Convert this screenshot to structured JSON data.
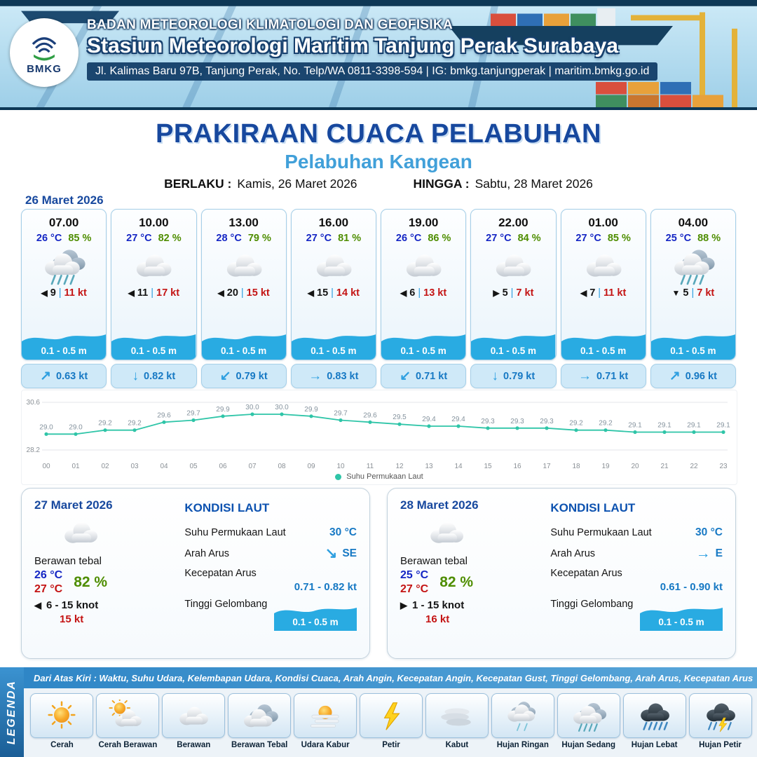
{
  "header": {
    "line1": "BADAN METEOROLOGI KLIMATOLOGI DAN GEOFISIKA",
    "line2": "Stasiun Meteorologi Maritim Tanjung Perak Surabaya",
    "line3": "Jl. Kalimas Baru 97B, Tanjung Perak, No. Telp/WA 0811-3398-594 | IG: bmkg.tanjungperak | maritim.bmkg.go.id",
    "logo_label": "BMKG"
  },
  "title": {
    "main": "PRAKIRAAN CUACA PELABUHAN",
    "port": "Pelabuhan Kangean",
    "berlaku_label": "BERLAKU :",
    "berlaku_value": "Kamis, 26 Maret 2026",
    "hingga_label": "HINGGA :",
    "hingga_value": "Sabtu, 28 Maret 2026"
  },
  "forecast": {
    "date": "26 Maret 2026",
    "cards": [
      {
        "time": "07.00",
        "temp": "26 °C",
        "humidity": "85 %",
        "icon": "rain-medium",
        "wind_dir": "w",
        "wind_speed": "9",
        "gust": "11 kt",
        "wave": "0.1 - 0.5 m",
        "current_dir": "ne",
        "current_speed": "0.63 kt"
      },
      {
        "time": "10.00",
        "temp": "27 °C",
        "humidity": "82 %",
        "icon": "cloud",
        "wind_dir": "w",
        "wind_speed": "11",
        "gust": "17 kt",
        "wave": "0.1 - 0.5 m",
        "current_dir": "s",
        "current_speed": "0.82 kt"
      },
      {
        "time": "13.00",
        "temp": "28 °C",
        "humidity": "79 %",
        "icon": "cloud",
        "wind_dir": "w",
        "wind_speed": "20",
        "gust": "15 kt",
        "wave": "0.1 - 0.5 m",
        "current_dir": "sw",
        "current_speed": "0.79 kt"
      },
      {
        "time": "16.00",
        "temp": "27 °C",
        "humidity": "81 %",
        "icon": "cloud",
        "wind_dir": "w",
        "wind_speed": "15",
        "gust": "14 kt",
        "wave": "0.1 - 0.5 m",
        "current_dir": "e",
        "current_speed": "0.83 kt"
      },
      {
        "time": "19.00",
        "temp": "26 °C",
        "humidity": "86 %",
        "icon": "cloud",
        "wind_dir": "w",
        "wind_speed": "6",
        "gust": "13 kt",
        "wave": "0.1 - 0.5 m",
        "current_dir": "sw",
        "current_speed": "0.71 kt"
      },
      {
        "time": "22.00",
        "temp": "27 °C",
        "humidity": "84 %",
        "icon": "cloud",
        "wind_dir": "e",
        "wind_speed": "5",
        "gust": "7 kt",
        "wave": "0.1 - 0.5 m",
        "current_dir": "s",
        "current_speed": "0.79 kt"
      },
      {
        "time": "01.00",
        "temp": "27 °C",
        "humidity": "85 %",
        "icon": "cloud",
        "wind_dir": "w",
        "wind_speed": "7",
        "gust": "11 kt",
        "wave": "0.1 - 0.5 m",
        "current_dir": "e",
        "current_speed": "0.71 kt"
      },
      {
        "time": "04.00",
        "temp": "25 °C",
        "humidity": "88 %",
        "icon": "rain-medium",
        "wind_dir": "s",
        "wind_speed": "5",
        "gust": "7 kt",
        "wave": "0.1 - 0.5 m",
        "current_dir": "ne",
        "current_speed": "0.96 kt"
      }
    ]
  },
  "chart_data": {
    "type": "line",
    "title": "Suhu Permukaan Laut",
    "series": [
      {
        "name": "Suhu Permukaan Laut",
        "values": [
          29.0,
          29.0,
          29.2,
          29.2,
          29.6,
          29.7,
          29.9,
          30.0,
          30.0,
          29.9,
          29.7,
          29.6,
          29.5,
          29.4,
          29.4,
          29.3,
          29.3,
          29.3,
          29.2,
          29.2,
          29.1,
          29.1,
          29.1,
          29.1
        ]
      }
    ],
    "x": [
      "00",
      "01",
      "02",
      "03",
      "04",
      "05",
      "06",
      "07",
      "08",
      "09",
      "10",
      "11",
      "12",
      "13",
      "14",
      "15",
      "16",
      "17",
      "18",
      "19",
      "20",
      "21",
      "22",
      "23"
    ],
    "ylim": [
      28.2,
      30.6
    ],
    "xlabel": "",
    "ylabel": "",
    "line_color": "#2fc5a8",
    "grid": "minimal",
    "legend_position": "bottom"
  },
  "daily": [
    {
      "date": "27 Maret 2026",
      "icon": "cloud",
      "condition": "Berawan tebal",
      "temp_min": "26 °C",
      "humidity": "82 %",
      "temp_max": "27 °C",
      "wind_dir": "w",
      "wind": "6 - 15 knot",
      "gust": "15 kt",
      "sea": {
        "title": "KONDISI LAUT",
        "sst_label": "Suhu Permukaan Laut",
        "sst_value": "30 °C",
        "dir_label": "Arah Arus",
        "dir_code": "se",
        "dir_text": "SE",
        "speed_label": "Kecepatan Arus",
        "speed_value": "0.71 - 0.82 kt",
        "wave_label": "Tinggi Gelombang",
        "wave_value": "0.1 - 0.5 m"
      }
    },
    {
      "date": "28 Maret 2026",
      "icon": "cloud",
      "condition": "Berawan tebal",
      "temp_min": "25 °C",
      "humidity": "82 %",
      "temp_max": "27 °C",
      "wind_dir": "e",
      "wind": "1 - 15 knot",
      "gust": "16 kt",
      "sea": {
        "title": "KONDISI LAUT",
        "sst_label": "Suhu Permukaan Laut",
        "sst_value": "30 °C",
        "dir_label": "Arah Arus",
        "dir_code": "e",
        "dir_text": "E",
        "speed_label": "Kecepatan Arus",
        "speed_value": "0.61 - 0.90 kt",
        "wave_label": "Tinggi Gelombang",
        "wave_value": "0.1 - 0.5 m"
      }
    }
  ],
  "legend": {
    "label": "LEGENDA",
    "description": "Dari Atas Kiri : Waktu, Suhu Udara, Kelembapan Udara, Kondisi Cuaca, Arah Angin, Kecepatan Angin, Kecepatan Gust, Tinggi Gelombang, Arah Arus, Kecepatan Arus",
    "items": [
      {
        "label": "Cerah",
        "icon": "sun"
      },
      {
        "label": "Cerah Berawan",
        "icon": "sun-cloud"
      },
      {
        "label": "Berawan",
        "icon": "cloud"
      },
      {
        "label": "Berawan Tebal",
        "icon": "cloud-thick"
      },
      {
        "label": "Udara Kabur",
        "icon": "haze"
      },
      {
        "label": "Petir",
        "icon": "lightning"
      },
      {
        "label": "Kabut",
        "icon": "fog"
      },
      {
        "label": "Hujan Ringan",
        "icon": "rain-light"
      },
      {
        "label": "Hujan Sedang",
        "icon": "rain-medium"
      },
      {
        "label": "Hujan Lebat",
        "icon": "rain-heavy"
      },
      {
        "label": "Hujan Petir",
        "icon": "thunderstorm"
      }
    ]
  },
  "colors": {
    "accent_navy": "#17489e",
    "accent_light_blue": "#41a0d9",
    "wave_blue": "#29abe2",
    "temp_blue": "#1526c4",
    "humidity_green": "#4e8d00",
    "gust_red": "#c41414",
    "current_blue": "#1779c4",
    "chart_teal": "#2fc5a8"
  }
}
